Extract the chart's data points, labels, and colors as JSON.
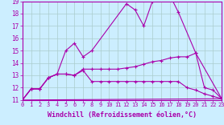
{
  "background_color": "#cceeff",
  "grid_color": "#aacccc",
  "line_color": "#aa00aa",
  "xlim": [
    0,
    23
  ],
  "ylim": [
    11,
    19
  ],
  "xlabel": "Windchill (Refroidissement éolien,°C)",
  "xlabel_fontsize": 6,
  "xtick_fontsize": 5,
  "ytick_fontsize": 5.5,
  "curves": [
    {
      "x": [
        0,
        1,
        2,
        3,
        4,
        5,
        6,
        7,
        8,
        12,
        13,
        14,
        15,
        16,
        17,
        18,
        20,
        23
      ],
      "y": [
        11.0,
        11.9,
        11.9,
        12.8,
        13.1,
        15.0,
        15.6,
        14.5,
        15.0,
        18.8,
        18.3,
        17.0,
        19.0,
        19.1,
        19.5,
        18.1,
        14.8,
        11.1
      ]
    },
    {
      "x": [
        0,
        1,
        2,
        3,
        4,
        5,
        6,
        7,
        8,
        9,
        10,
        11,
        12,
        13,
        14,
        15,
        16,
        17,
        18,
        19,
        20,
        21,
        22,
        23
      ],
      "y": [
        11.0,
        11.9,
        11.9,
        12.8,
        13.1,
        13.1,
        13.0,
        13.5,
        13.5,
        13.5,
        13.5,
        13.5,
        13.6,
        13.7,
        13.9,
        14.1,
        14.2,
        14.4,
        14.5,
        14.5,
        14.8,
        12.0,
        11.8,
        11.1
      ]
    },
    {
      "x": [
        0,
        1,
        2,
        3,
        4,
        5,
        6,
        7,
        8,
        9,
        10,
        11,
        12,
        13,
        14,
        15,
        16,
        17,
        18,
        19,
        20,
        21,
        22,
        23
      ],
      "y": [
        11.0,
        11.9,
        11.9,
        12.8,
        13.1,
        13.1,
        13.0,
        13.4,
        12.5,
        12.5,
        12.5,
        12.5,
        12.5,
        12.5,
        12.5,
        12.5,
        12.5,
        12.5,
        12.5,
        12.0,
        11.8,
        11.5,
        11.3,
        11.1
      ]
    },
    {
      "x": [
        0,
        23
      ],
      "y": [
        11.0,
        11.1
      ]
    }
  ]
}
